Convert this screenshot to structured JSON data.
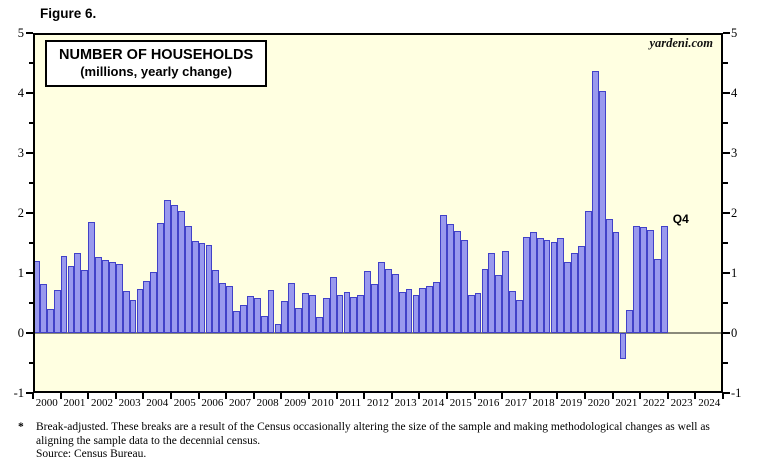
{
  "figure_label": "Figure 6.",
  "watermark": "yardeni.com",
  "footnote": {
    "marker": "*",
    "line1": "Break-adjusted. These breaks are a result of the Census occasionally altering the size of the sample and making methodological changes as well as",
    "line2": "aligning the sample data to the decennial census.",
    "source": "Source: Census Bureau."
  },
  "chart_data": {
    "type": "bar",
    "title": "NUMBER OF HOUSEHOLDS",
    "subtitle": "(millions, yearly change)",
    "ylim": [
      -1,
      5
    ],
    "yticks_major": [
      -1,
      0,
      1,
      2,
      3,
      4,
      5
    ],
    "yticks_minor": [
      -0.5,
      0.5,
      1.5,
      2.5,
      3.5,
      4.5
    ],
    "grid": "off",
    "legend": "none",
    "start_year": 2000,
    "quarters_per_year": 4,
    "xtick_years": [
      2000,
      2001,
      2002,
      2003,
      2004,
      2005,
      2006,
      2007,
      2008,
      2009,
      2010,
      2011,
      2012,
      2013,
      2014,
      2015,
      2016,
      2017,
      2018,
      2019,
      2020,
      2021,
      2022,
      2023,
      2024
    ],
    "axis_year_span": 25,
    "values": [
      1.2,
      0.82,
      0.4,
      0.71,
      1.28,
      1.12,
      1.33,
      1.05,
      1.85,
      1.26,
      1.22,
      1.19,
      1.15,
      0.7,
      0.55,
      0.74,
      0.87,
      1.01,
      1.84,
      2.22,
      2.13,
      2.04,
      1.79,
      1.54,
      1.5,
      1.47,
      1.05,
      0.84,
      0.79,
      0.37,
      0.47,
      0.62,
      0.59,
      0.29,
      0.71,
      0.15,
      0.54,
      0.84,
      0.42,
      0.66,
      0.63,
      0.27,
      0.58,
      0.93,
      0.63,
      0.68,
      0.6,
      0.63,
      1.04,
      0.82,
      1.19,
      1.06,
      0.98,
      0.68,
      0.74,
      0.64,
      0.75,
      0.79,
      0.85,
      1.97,
      1.81,
      1.7,
      1.55,
      0.64,
      0.67,
      1.07,
      1.33,
      0.96,
      1.37,
      0.7,
      0.55,
      1.6,
      1.69,
      1.58,
      1.55,
      1.52,
      1.58,
      1.18,
      1.33,
      1.45,
      2.04,
      4.37,
      4.04,
      1.9,
      1.69,
      -0.44,
      0.38,
      1.79,
      1.77,
      1.72,
      1.24,
      1.79
    ],
    "last_bar_label": "Q4",
    "colors": {
      "bar_fill": "#9999ee",
      "bar_border": "#4141c8",
      "plot_bg": "#ffffe1",
      "frame": "#000000",
      "zero_line": "#8a8a7a"
    }
  }
}
